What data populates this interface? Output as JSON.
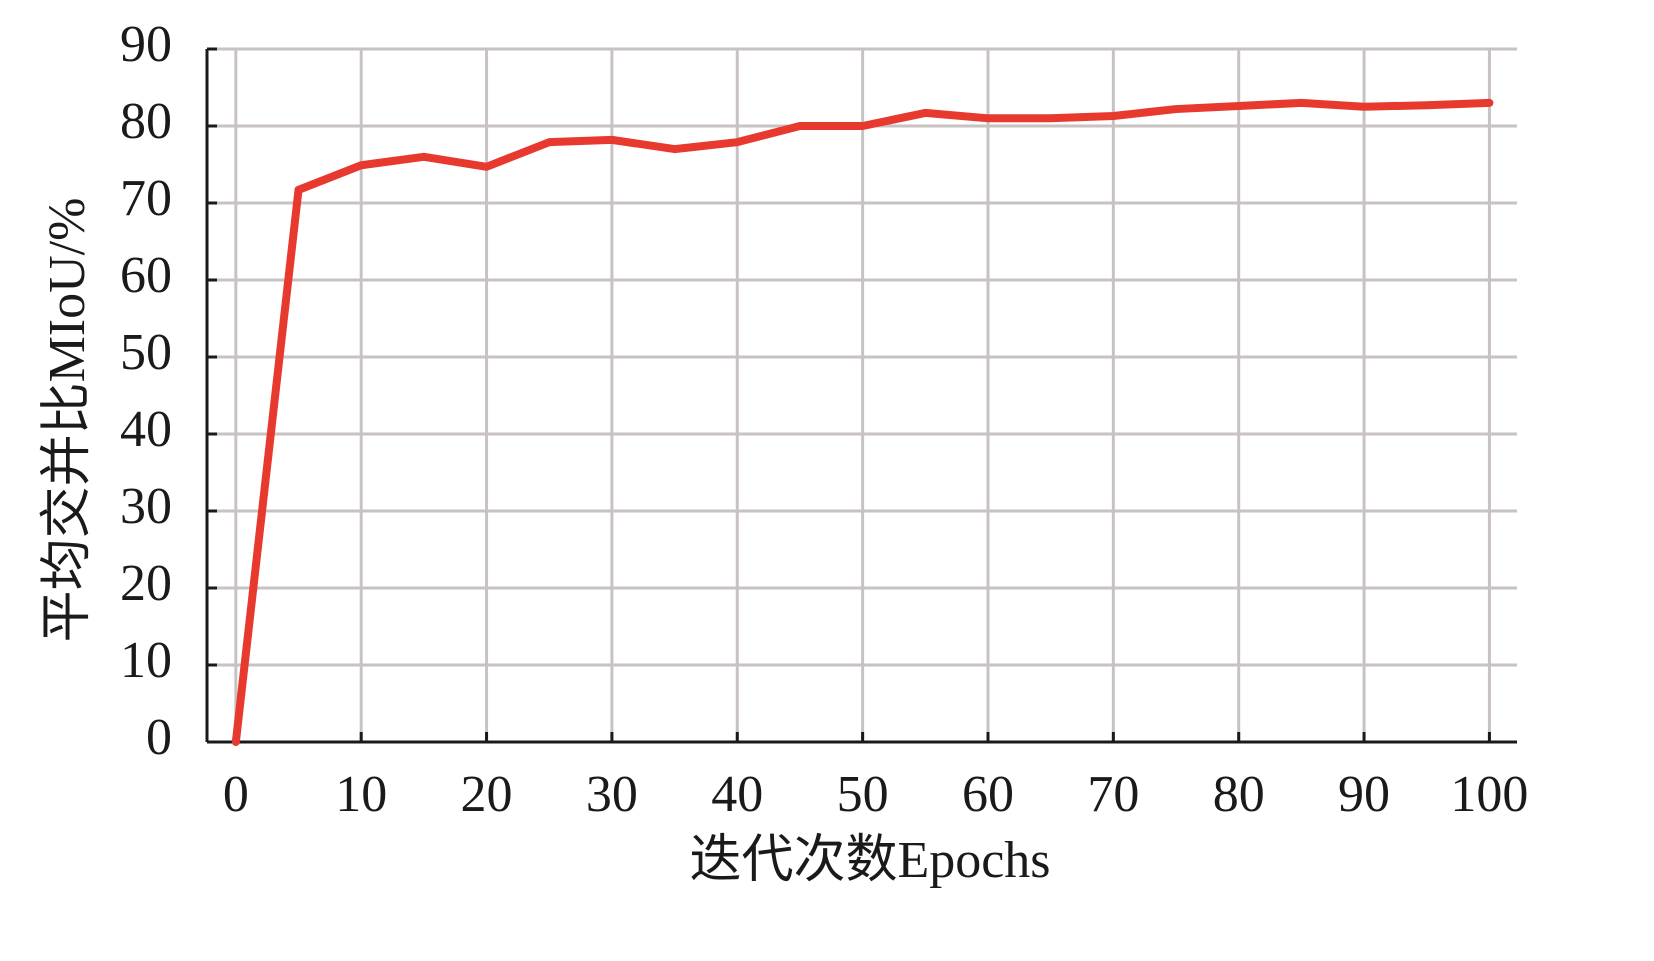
{
  "chart_data": {
    "type": "line",
    "x_label": "迭代次数Epochs",
    "y_label": "平均交并比MIoU/%",
    "x": [
      0,
      5,
      10,
      15,
      20,
      25,
      30,
      35,
      40,
      45,
      50,
      55,
      60,
      65,
      70,
      75,
      80,
      85,
      90,
      95,
      100
    ],
    "series": [
      {
        "color": "#e8392f",
        "values": [
          0,
          71.7,
          74.9,
          76.0,
          74.7,
          77.9,
          78.2,
          77.0,
          77.9,
          80.0,
          80.0,
          81.7,
          81.0,
          81.0,
          81.3,
          82.2,
          82.6,
          83.0,
          82.5,
          82.7,
          83.0
        ]
      }
    ],
    "xlim": [
      -2.3,
      102.2
    ],
    "xticks": [
      0,
      10,
      20,
      30,
      40,
      50,
      60,
      70,
      80,
      90,
      100
    ],
    "ylim": [
      0,
      90
    ],
    "yticks": [
      0,
      10,
      20,
      30,
      40,
      50,
      60,
      70,
      80,
      90
    ],
    "grid": true
  }
}
